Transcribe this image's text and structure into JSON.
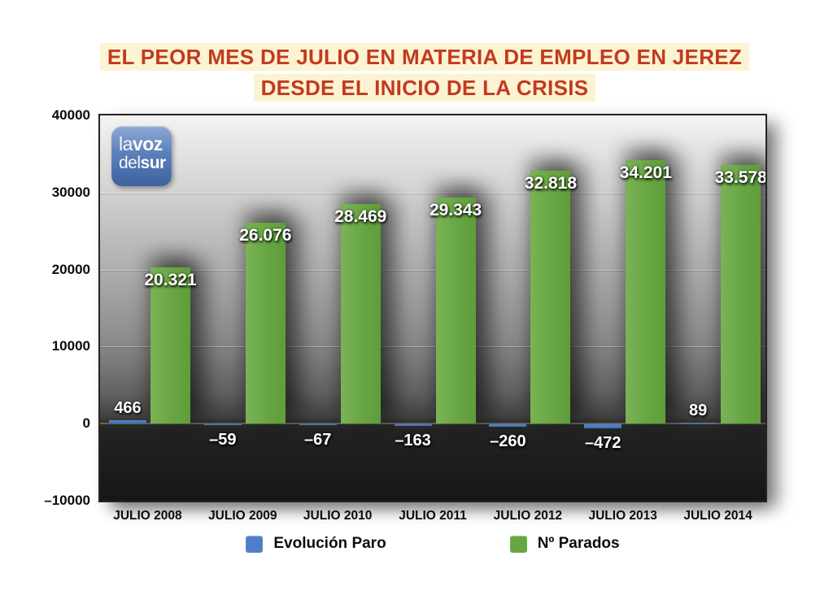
{
  "title": {
    "line1": "EL PEOR MES DE JULIO EN MATERIA DE EMPLEO EN JEREZ",
    "line2": "DESDE EL INICIO DE LA CRISIS",
    "text_color": "#c23a1e",
    "highlight_color": "#fcf3d3"
  },
  "logo": {
    "top_light": "la",
    "top_bold": "voz",
    "bottom_light": "del",
    "bottom_bold": "sur"
  },
  "chart_data": {
    "type": "bar",
    "title": "EL PEOR MES DE JULIO EN MATERIA DE EMPLEO EN JEREZ DESDE EL INICIO DE LA CRISIS",
    "categories": [
      "JULIO 2008",
      "JULIO 2009",
      "JULIO 2010",
      "JULIO 2011",
      "JULIO 2012",
      "JULIO 2013",
      "JULIO 2014"
    ],
    "series": [
      {
        "name": "Evolución Paro",
        "color": "#4f7fc9",
        "values": [
          466,
          -59,
          -67,
          -163,
          -260,
          -472,
          89
        ],
        "labels": [
          "466",
          "–59",
          "–67",
          "–163",
          "–260",
          "–472",
          "89"
        ]
      },
      {
        "name": "Nº Parados",
        "color": "#68a643",
        "values": [
          20321,
          26076,
          28469,
          29343,
          32818,
          34201,
          33578
        ],
        "labels": [
          "20.321",
          "26.076",
          "28.469",
          "29.343",
          "32.818",
          "34.201",
          "33.578"
        ]
      }
    ],
    "xlabel": "",
    "ylabel": "",
    "ylim": [
      -10000,
      40000
    ],
    "yticks": [
      40000,
      30000,
      20000,
      10000,
      0,
      -10000
    ],
    "ytick_labels": [
      "40000",
      "30000",
      "20000",
      "10000",
      "0",
      "–10000"
    ],
    "gridline_values": [
      30000,
      20000,
      10000
    ],
    "grid": true,
    "legend_position": "bottom"
  }
}
